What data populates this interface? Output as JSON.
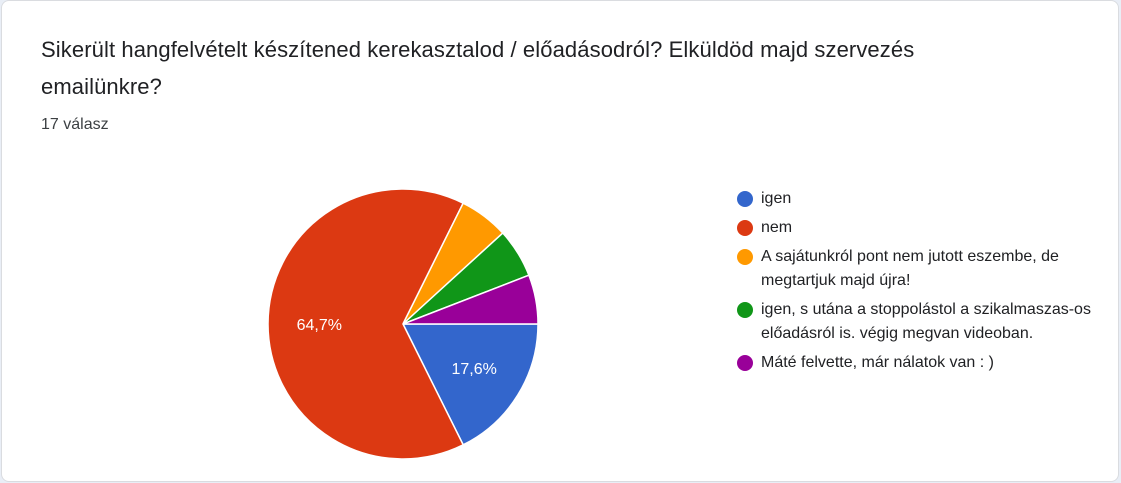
{
  "question": {
    "title": "Sikerült hangfelvételt készítened kerekasztalod / előadásodról? Elküldöd majd szervezés emailünkre?",
    "response_count": "17 válasz"
  },
  "chart_data": {
    "type": "pie",
    "total_responses": 17,
    "slices": [
      {
        "label": "igen",
        "count": 3,
        "percent_label": "17,6%",
        "color": "#3366cc"
      },
      {
        "label": "nem",
        "count": 11,
        "percent_label": "64,7%",
        "color": "#dc3912"
      },
      {
        "label": "A sajátunkról pont nem jutott eszembe, de megtartjuk majd újra!",
        "count": 1,
        "percent_label": "",
        "color": "#ff9900"
      },
      {
        "label": "igen, s utána a stoppolástol a szikalmaszas-os előadásról is. végig megvan videoban.",
        "count": 1,
        "percent_label": "",
        "color": "#109618"
      },
      {
        "label": "Máté felvette, már nálatok van : )",
        "count": 1,
        "percent_label": "",
        "color": "#990099"
      }
    ],
    "legend_position": "right"
  }
}
